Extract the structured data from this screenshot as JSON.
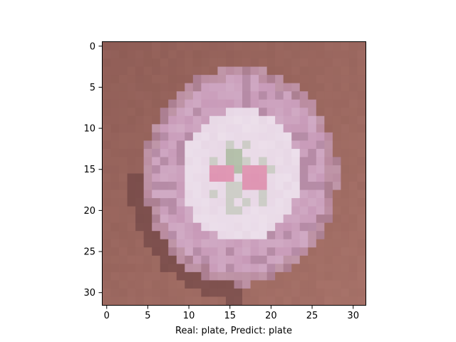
{
  "figure": {
    "xlabel": "Real: plate, Predict: plate",
    "x_ticks": [
      "0",
      "5",
      "10",
      "15",
      "20",
      "25",
      "30"
    ],
    "y_ticks": [
      "0",
      "5",
      "10",
      "15",
      "20",
      "25",
      "30"
    ]
  },
  "image": {
    "description_subject": "plate",
    "resolution": [
      32,
      32
    ],
    "colors": {
      "background": "#8e5c55",
      "background_light": "#b07a70",
      "plate_rim": "#c89ab8",
      "plate_inner": "#e8d8e6",
      "accent_pink": "#d86890",
      "accent_green": "#88a878",
      "shadow": "#5a3438"
    }
  },
  "chart_data": {
    "type": "heatmap",
    "xlim": [
      -0.5,
      31.5
    ],
    "ylim": [
      31.5,
      -0.5
    ],
    "xlabel": "Real: plate, Predict: plate",
    "ylabel": "",
    "title": "",
    "grid": false
  }
}
